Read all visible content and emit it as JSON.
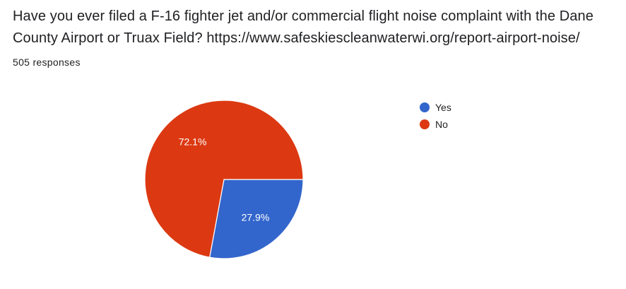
{
  "question": {
    "title": "Have you ever filed a F-16 fighter jet and/or commercial flight noise complaint with the Dane County Airport or Truax Field? https://www.safeskiescleanwaterwi.org/report-airport-noise/",
    "responses": "505 responses"
  },
  "chart_data": {
    "type": "pie",
    "categories": [
      "Yes",
      "No"
    ],
    "values": [
      27.9,
      72.1
    ],
    "labels": [
      "27.9%",
      "72.1%"
    ],
    "colors": [
      "#3366cc",
      "#dc3912"
    ],
    "legend_position": "right",
    "start": "3 o'clock, clockwise"
  }
}
